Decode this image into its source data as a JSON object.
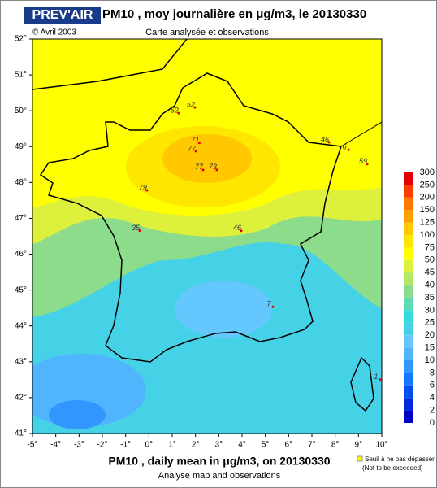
{
  "header": {
    "logo": "PREV'AIR",
    "title": "PM10 , moy journalière en μg/m3, le 20130330",
    "copyright": "© Avril 2003",
    "subtitle": "Carte analysée et observations"
  },
  "map": {
    "lonlim": [
      -5,
      10
    ],
    "latlim": [
      41,
      52
    ],
    "lonticks": [
      {
        "value": -5,
        "label": "-5°"
      },
      {
        "value": -4,
        "label": "-4°"
      },
      {
        "value": -3,
        "label": "-3°"
      },
      {
        "value": -2,
        "label": "-2°"
      },
      {
        "value": -1,
        "label": "-1°"
      },
      {
        "value": 0,
        "label": "0°"
      },
      {
        "value": 1,
        "label": "1°"
      },
      {
        "value": 2,
        "label": "2°"
      },
      {
        "value": 3,
        "label": "3°"
      },
      {
        "value": 4,
        "label": "4°"
      },
      {
        "value": 5,
        "label": "5°"
      },
      {
        "value": 6,
        "label": "6°"
      },
      {
        "value": 7,
        "label": "7°"
      },
      {
        "value": 8,
        "label": "8°"
      },
      {
        "value": 9,
        "label": "9°"
      },
      {
        "value": 10,
        "label": "10°"
      }
    ],
    "latticks": [
      {
        "value": 41,
        "label": "41°"
      },
      {
        "value": 42,
        "label": "42°"
      },
      {
        "value": 43,
        "label": "43°"
      },
      {
        "value": 44,
        "label": "44°"
      },
      {
        "value": 45,
        "label": "45°"
      },
      {
        "value": 46,
        "label": "46°"
      },
      {
        "value": 47,
        "label": "47°"
      },
      {
        "value": 48,
        "label": "48°"
      },
      {
        "value": 49,
        "label": "49°"
      },
      {
        "value": 50,
        "label": "50°"
      },
      {
        "value": 51,
        "label": "51°"
      },
      {
        "value": 52,
        "label": "52°"
      }
    ],
    "observations": [
      {
        "lon": 1.99,
        "lat": 49.17,
        "value": 71
      },
      {
        "lon": 1.84,
        "lat": 48.94,
        "value": 77
      },
      {
        "lon": 2.15,
        "lat": 48.42,
        "value": 77
      },
      {
        "lon": 2.74,
        "lat": 48.42,
        "value": 73
      },
      {
        "lon": -0.26,
        "lat": 47.85,
        "value": 79
      },
      {
        "lon": 1.1,
        "lat": 50.0,
        "value": 52
      },
      {
        "lon": 1.8,
        "lat": 50.16,
        "value": 52
      },
      {
        "lon": 7.56,
        "lat": 49.19,
        "value": 46
      },
      {
        "lon": 8.4,
        "lat": 48.98,
        "value": 6
      },
      {
        "lon": 9.2,
        "lat": 48.58,
        "value": 59
      },
      {
        "lon": -0.57,
        "lat": 46.72,
        "value": 35
      },
      {
        "lon": 3.79,
        "lat": 46.72,
        "value": 46
      },
      {
        "lon": 5.15,
        "lat": 44.6,
        "value": 7
      },
      {
        "lon": 9.75,
        "lat": 42.57,
        "value": 1
      }
    ],
    "colorscale": {
      "levels": [
        0,
        2,
        4,
        6,
        8,
        10,
        15,
        20,
        25,
        30,
        35,
        40,
        45,
        50,
        75,
        100,
        125,
        150,
        200,
        250,
        300
      ],
      "colors": [
        "#0000c8",
        "#0028dc",
        "#0050f0",
        "#1478ff",
        "#3296ff",
        "#50b4ff",
        "#64c8ff",
        "#46d2e6",
        "#32dcdc",
        "#5adcb4",
        "#8cdc8c",
        "#b4e664",
        "#dcf03c",
        "#ffff00",
        "#ffe600",
        "#ffc800",
        "#ffa000",
        "#ff7800",
        "#ff3c00",
        "#e60000"
      ]
    }
  },
  "footer": {
    "title": "PM10 , daily mean in μg/m3, on 20130330",
    "subtitle": "Analyse map and observations",
    "legend": "Seuil à ne pas dépasser",
    "legend_note": "(Not to be exceeded)"
  }
}
